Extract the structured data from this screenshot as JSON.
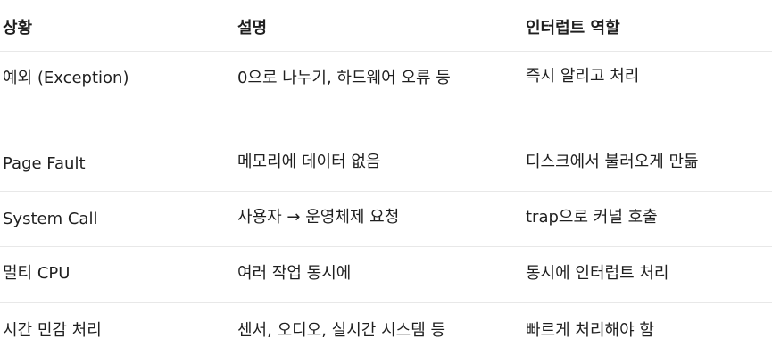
{
  "table": {
    "headers": [
      "상황",
      "설명",
      "인터럽트 역할"
    ],
    "rows": [
      [
        "예외 (Exception)",
        "0으로 나누기, 하드웨어 오류 등",
        "즉시 알리고 처리"
      ],
      [
        "Page Fault",
        "메모리에 데이터 없음",
        "디스크에서 불러오게 만듦"
      ],
      [
        "System Call",
        "사용자 → 운영체제 요청",
        "trap으로 커널 호출"
      ],
      [
        "멀티 CPU",
        "여러 작업 동시에",
        "동시에 인터럽트 처리"
      ],
      [
        "시간 민감 처리",
        "센서, 오디오, 실시간 시스템 등",
        "빠르게 처리해야 함"
      ]
    ]
  }
}
